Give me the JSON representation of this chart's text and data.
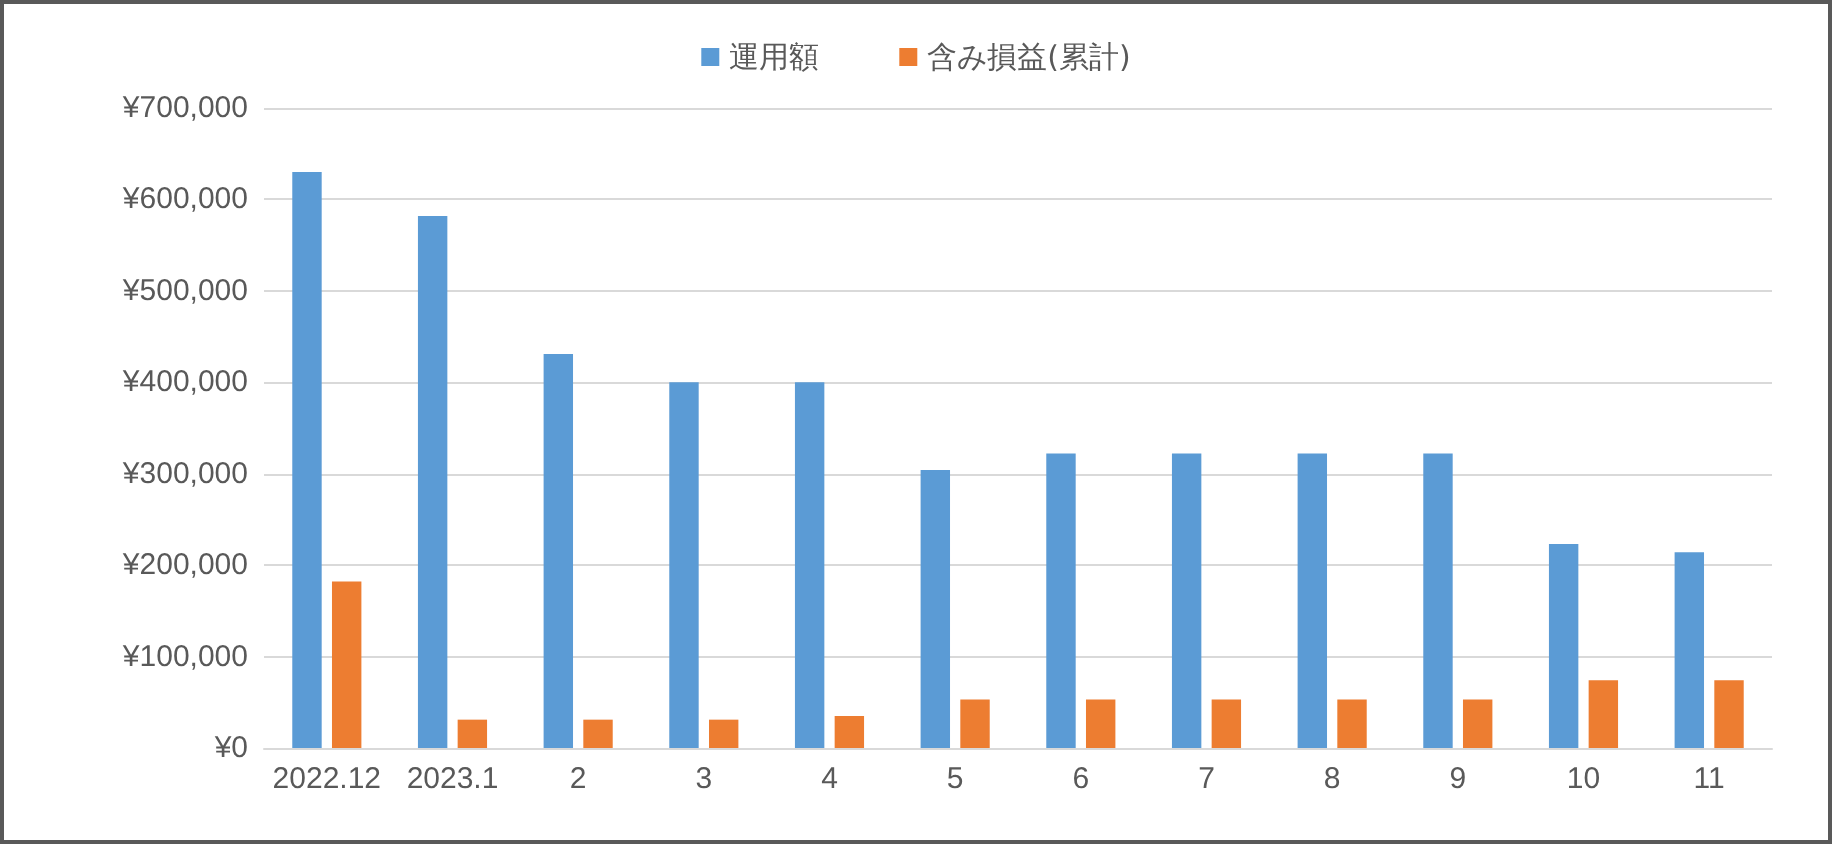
{
  "chart_data": {
    "type": "bar",
    "categories": [
      "2022.12",
      "2023.1",
      "2",
      "3",
      "4",
      "5",
      "6",
      "7",
      "8",
      "9",
      "10",
      "11"
    ],
    "series": [
      {
        "name": "運用額",
        "color": "#5b9bd5",
        "values": [
          630000,
          582000,
          431000,
          400000,
          400000,
          304000,
          322000,
          322000,
          322000,
          322000,
          223000,
          214000
        ]
      },
      {
        "name": "含み損益(累計)",
        "color": "#ed7d31",
        "values": [
          182000,
          31000,
          31000,
          31000,
          35000,
          53000,
          53000,
          53000,
          53000,
          53000,
          74000,
          74000
        ]
      }
    ],
    "ylim": [
      0,
      700000
    ],
    "yticks": [
      {
        "value": 0,
        "label": "¥0"
      },
      {
        "value": 100000,
        "label": "¥100,000"
      },
      {
        "value": 200000,
        "label": "¥200,000"
      },
      {
        "value": 300000,
        "label": "¥300,000"
      },
      {
        "value": 400000,
        "label": "¥400,000"
      },
      {
        "value": 500000,
        "label": "¥500,000"
      },
      {
        "value": 600000,
        "label": "¥600,000"
      },
      {
        "value": 700000,
        "label": "¥700,000"
      }
    ],
    "grid": "y",
    "legend": "top"
  }
}
